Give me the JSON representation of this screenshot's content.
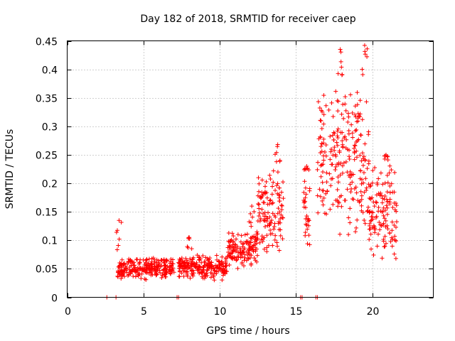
{
  "chart_data": {
    "type": "scatter",
    "title": "Day 182 of 2018, SRMTID for receiver caep",
    "xlabel": "GPS time / hours",
    "ylabel": "SRMTID / TECUs",
    "xlim": [
      0,
      24
    ],
    "ylim": [
      0,
      0.45
    ],
    "xticks": [
      "0",
      "5",
      "10",
      "15",
      "20"
    ],
    "yticks": [
      "0",
      "0.05",
      "0.1",
      "0.15",
      "0.2",
      "0.25",
      "0.3",
      "0.35",
      "0.4",
      "0.45"
    ],
    "grid": true,
    "marker": "+",
    "color": "#ff0000",
    "zero_markers_x": [
      2.6,
      3.2,
      7.2,
      7.3,
      15.3,
      15.4,
      16.3,
      16.4
    ],
    "segments": [
      {
        "x_start": 3.3,
        "x_end": 7.0,
        "low": 0.03,
        "high": 0.07,
        "peak_x": 3.4,
        "peak": 0.135
      },
      {
        "x_start": 7.3,
        "x_end": 10.5,
        "low": 0.03,
        "high": 0.075,
        "peak_x": 8.0,
        "peak": 0.105
      },
      {
        "x_start": 10.5,
        "x_end": 12.5,
        "low": 0.05,
        "high": 0.12,
        "peak_x": 12.1,
        "peak": 0.16
      },
      {
        "x_start": 12.5,
        "x_end": 14.2,
        "low": 0.07,
        "high": 0.23,
        "peak_x": 13.8,
        "peak": 0.268
      },
      {
        "x_start": 15.5,
        "x_end": 15.9,
        "low": 0.08,
        "high": 0.22,
        "peak_x": 15.7,
        "peak": 0.23
      },
      {
        "x_start": 16.4,
        "x_end": 19.0,
        "low": 0.1,
        "high": 0.38,
        "peak_x": 17.9,
        "peak": 0.435
      },
      {
        "x_start": 19.0,
        "x_end": 19.8,
        "low": 0.05,
        "high": 0.38,
        "peak_x": 19.5,
        "peak": 0.442
      },
      {
        "x_start": 19.8,
        "x_end": 21.6,
        "low": 0.05,
        "high": 0.24,
        "peak_x": 20.9,
        "peak": 0.25
      }
    ]
  }
}
